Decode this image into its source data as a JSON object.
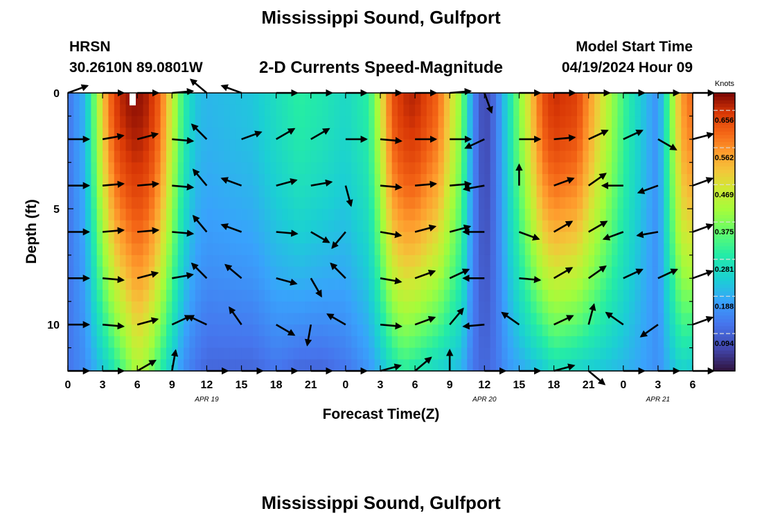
{
  "header": {
    "title": "Mississippi Sound, Gulfport",
    "station_name": "HRSN",
    "station_coords": "30.2610N  89.0801W",
    "plot_title": "2-D Currents Speed-Magnitude",
    "model_start_label": "Model Start Time",
    "model_start_value": "04/19/2024 Hour 09"
  },
  "footer": {
    "title": "Mississippi Sound, Gulfport"
  },
  "chart_data": {
    "type": "heatmap",
    "title": "2-D Currents Speed-Magnitude",
    "xlabel": "Forecast Time(Z)",
    "ylabel": "Depth (ft)",
    "x_tick_labels": [
      "0",
      "3",
      "6",
      "9",
      "12",
      "15",
      "18",
      "21",
      "0",
      "3",
      "6",
      "9",
      "12",
      "15",
      "18",
      "21",
      "0",
      "3",
      "6"
    ],
    "x_range_hours": [
      0,
      54
    ],
    "date_labels": [
      {
        "label": "APR 19",
        "hour": 12
      },
      {
        "label": "APR 20",
        "hour": 36
      },
      {
        "label": "APR 21",
        "hour": 51
      }
    ],
    "y_tick_labels": [
      "0",
      "5",
      "10"
    ],
    "y_range": [
      0,
      12
    ],
    "y_inverted": true,
    "colorbar": {
      "title": "Knots",
      "ticks": [
        0.094,
        0.188,
        0.281,
        0.375,
        0.469,
        0.562,
        0.656
      ],
      "range": [
        0.0,
        0.7
      ]
    },
    "speed_profile": {
      "hours": [
        0,
        1.5,
        3,
        4,
        5,
        6,
        7,
        8,
        9,
        10,
        11,
        12,
        14,
        16,
        18,
        20,
        22,
        24,
        26,
        27,
        28,
        29,
        30,
        32,
        34,
        35,
        36,
        37,
        38,
        40,
        41,
        42,
        44,
        46,
        48,
        50,
        51,
        52,
        53,
        54
      ],
      "surface_knots": [
        0.12,
        0.2,
        0.5,
        0.64,
        0.68,
        0.69,
        0.67,
        0.6,
        0.45,
        0.3,
        0.22,
        0.2,
        0.21,
        0.22,
        0.26,
        0.3,
        0.28,
        0.25,
        0.3,
        0.45,
        0.62,
        0.66,
        0.67,
        0.6,
        0.38,
        0.15,
        0.05,
        0.12,
        0.25,
        0.5,
        0.62,
        0.66,
        0.64,
        0.48,
        0.32,
        0.2,
        0.15,
        0.35,
        0.55,
        0.6
      ],
      "bottom_knots": [
        0.12,
        0.15,
        0.22,
        0.28,
        0.35,
        0.42,
        0.38,
        0.3,
        0.22,
        0.15,
        0.12,
        0.1,
        0.1,
        0.1,
        0.12,
        0.1,
        0.1,
        0.12,
        0.16,
        0.2,
        0.26,
        0.3,
        0.28,
        0.24,
        0.2,
        0.12,
        0.1,
        0.12,
        0.16,
        0.2,
        0.22,
        0.26,
        0.24,
        0.22,
        0.2,
        0.17,
        0.15,
        0.2,
        0.24,
        0.22
      ]
    },
    "vector_depths_ft": [
      0,
      2,
      4,
      6,
      8,
      10,
      12
    ],
    "vector_hours": [
      0,
      3,
      6,
      9,
      12,
      15,
      18,
      21,
      24,
      27,
      30,
      33,
      36,
      39,
      42,
      45,
      48,
      51,
      54
    ],
    "vector_directions_deg": [
      [
        -20,
        0,
        0,
        -5,
        220,
        200,
        0,
        0,
        0,
        0,
        0,
        -5,
        70,
        0,
        0,
        0,
        0,
        0,
        0
      ],
      [
        0,
        -10,
        -15,
        5,
        225,
        -20,
        -30,
        -30,
        0,
        5,
        0,
        0,
        155,
        0,
        -5,
        -25,
        -25,
        30,
        -15
      ],
      [
        0,
        -5,
        -5,
        5,
        230,
        200,
        -15,
        -10,
        75,
        5,
        -5,
        -5,
        170,
        -90,
        -20,
        -35,
        180,
        160,
        -20
      ],
      [
        0,
        -5,
        -5,
        5,
        230,
        200,
        5,
        30,
        130,
        10,
        -15,
        -15,
        180,
        20,
        -30,
        -30,
        160,
        170,
        -20
      ],
      [
        0,
        5,
        -15,
        -10,
        225,
        220,
        15,
        60,
        225,
        10,
        -20,
        -25,
        180,
        5,
        -30,
        -35,
        -25,
        -25,
        -20
      ],
      [
        0,
        5,
        -15,
        -25,
        205,
        235,
        30,
        100,
        210,
        5,
        -20,
        -50,
        175,
        215,
        -25,
        -75,
        215,
        145,
        -20
      ],
      [
        0,
        0,
        -30,
        -80,
        0,
        0,
        0,
        0,
        0,
        -15,
        -40,
        -90,
        0,
        0,
        -15,
        40,
        0,
        0,
        0
      ]
    ]
  }
}
